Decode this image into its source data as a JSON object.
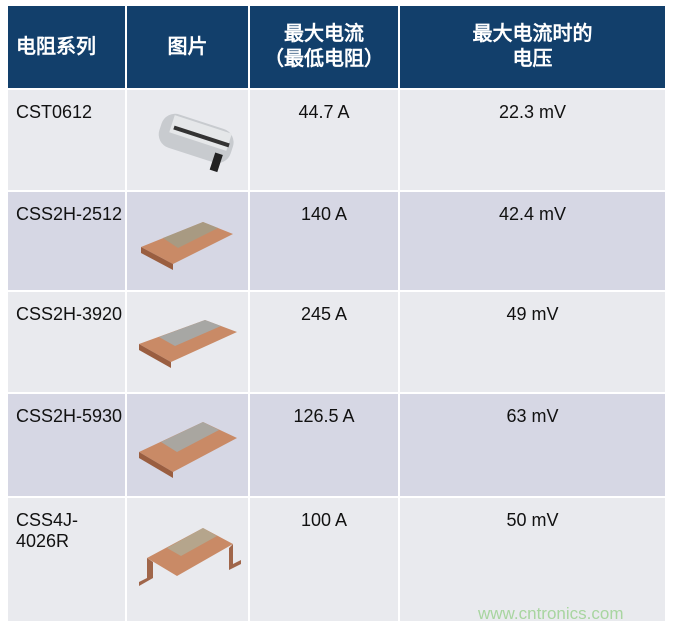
{
  "headers": [
    "电阻系列",
    "图片",
    "最大电流\n（最低电阻）",
    "最大电流时的\n电压"
  ],
  "header_lines": {
    "c2a": "最大电流",
    "c2b": "（最低电阻）",
    "c3a": "最大电流时的",
    "c3b": "电压"
  },
  "rows": [
    {
      "series": "CST0612",
      "image": "silver-resistor",
      "current": "44.7 A",
      "voltage": "22.3 mV"
    },
    {
      "series": "CSS2H-2512",
      "image": "copper-resistor",
      "current": "140 A",
      "voltage": "42.4 mV"
    },
    {
      "series": "CSS2H-3920",
      "image": "copper-resistor",
      "current": "245 A",
      "voltage": "49 mV"
    },
    {
      "series": "CSS2H-5930",
      "image": "copper-resistor",
      "current": "126.5 A",
      "voltage": "63 mV"
    },
    {
      "series": "CSS4J-4026R",
      "image": "copper-bent-resistor",
      "current": "100 A",
      "voltage": "50 mV"
    }
  ],
  "watermark": "www.cntronics.com",
  "colors": {
    "header": "#123f6b",
    "row_light": "#e9eaee",
    "row_dark": "#d6d7e4",
    "copper": "#c98a66",
    "silver": "#b9bcc0"
  }
}
